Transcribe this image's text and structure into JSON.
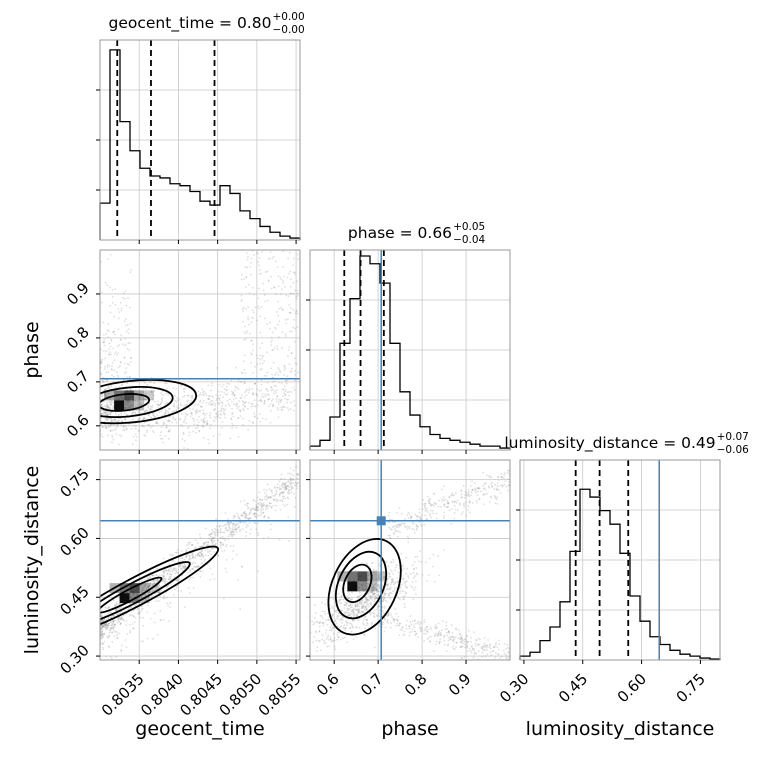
{
  "chart_data": {
    "type": "scatter",
    "subtype": "corner-plot",
    "grid": true,
    "colors": {
      "line": "#000000",
      "truth": "#4682b4",
      "grid": "#c8c8c8",
      "sample": "#8c8c8c",
      "density": "#000000"
    },
    "parameters": [
      {
        "name": "geocent_time",
        "label": "geocent_time",
        "title": "geocent_time = 0.80",
        "title_plus": "+0.00",
        "title_minus": "−0.00",
        "range": [
          0.803,
          0.80555
        ],
        "ticks": [
          0.8035,
          0.804,
          0.8045,
          0.805,
          0.8055
        ],
        "tick_labels": [
          "0.8035",
          "0.8040",
          "0.8045",
          "0.8050",
          "0.8055"
        ],
        "quantiles": [
          0.80322,
          0.80365,
          0.80446
        ],
        "truth": null,
        "hist": [
          0.19,
          0.98,
          0.61,
          0.46,
          0.37,
          0.33,
          0.32,
          0.29,
          0.28,
          0.25,
          0.2,
          0.18,
          0.28,
          0.24,
          0.15,
          0.11,
          0.07,
          0.04,
          0.02,
          0.01
        ]
      },
      {
        "name": "phase",
        "label": "phase",
        "title": "phase = 0.66",
        "title_plus": "+0.05",
        "title_minus": "−0.04",
        "range": [
          0.545,
          1.0
        ],
        "ticks": [
          0.6,
          0.7,
          0.8,
          0.9
        ],
        "tick_labels": [
          "0.6",
          "0.7",
          "0.8",
          "0.9"
        ],
        "quantiles": [
          0.623,
          0.66,
          0.713
        ],
        "truth": 0.707,
        "hist": [
          0.02,
          0.05,
          0.17,
          0.55,
          0.78,
          1.0,
          0.96,
          0.86,
          0.55,
          0.3,
          0.18,
          0.12,
          0.08,
          0.06,
          0.05,
          0.04,
          0.03,
          0.02,
          0.02,
          0.01
        ]
      },
      {
        "name": "luminosity_distance",
        "label": "luminosity_distance",
        "title": "luminosity_distance = 0.49",
        "title_plus": "+0.07",
        "title_minus": "−0.06",
        "range": [
          0.29,
          0.8
        ],
        "ticks": [
          0.3,
          0.45,
          0.6,
          0.75
        ],
        "tick_labels": [
          "0.30",
          "0.45",
          "0.60",
          "0.75"
        ],
        "quantiles": [
          0.432,
          0.493,
          0.566
        ],
        "truth": 0.645,
        "hist": [
          0.02,
          0.04,
          0.1,
          0.17,
          0.3,
          0.56,
          0.88,
          0.84,
          0.77,
          0.7,
          0.55,
          0.33,
          0.2,
          0.12,
          0.08,
          0.05,
          0.03,
          0.02,
          0.01,
          0.005
        ]
      }
    ],
    "pairs": [
      {
        "x": "geocent_time",
        "y": "phase"
      },
      {
        "x": "geocent_time",
        "y": "luminosity_distance"
      },
      {
        "x": "phase",
        "y": "luminosity_distance"
      }
    ]
  }
}
